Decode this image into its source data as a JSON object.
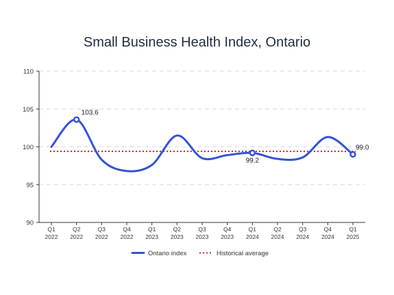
{
  "chart_data": {
    "type": "line",
    "title": "Small Business Health Index, Ontario",
    "xlabel": "",
    "ylabel": "",
    "ylim": [
      90,
      110
    ],
    "yticks": [
      90,
      95,
      100,
      105,
      110
    ],
    "categories": [
      [
        "Q1",
        "2022"
      ],
      [
        "Q2",
        "2022"
      ],
      [
        "Q3",
        "2022"
      ],
      [
        "Q4",
        "2022"
      ],
      [
        "Q1",
        "2023"
      ],
      [
        "Q2",
        "2023"
      ],
      [
        "Q3",
        "2023"
      ],
      [
        "Q4",
        "2023"
      ],
      [
        "Q1",
        "2024"
      ],
      [
        "Q2",
        "2024"
      ],
      [
        "Q3",
        "2024"
      ],
      [
        "Q4",
        "2024"
      ],
      [
        "Q1",
        "2025"
      ]
    ],
    "series": [
      {
        "name": "Ontario index",
        "color": "#3452d6",
        "values": [
          100.0,
          103.6,
          98.3,
          96.8,
          97.6,
          101.5,
          98.5,
          98.9,
          99.2,
          98.4,
          98.6,
          101.3,
          99.0
        ],
        "annotated_points": [
          {
            "index": 1,
            "label": "103.6"
          },
          {
            "index": 8,
            "label": "99.2"
          },
          {
            "index": 12,
            "label": "99.0"
          }
        ]
      }
    ],
    "reference_lines": [
      {
        "name": "Historical average",
        "value": 99.4,
        "color": "#cc1f1f",
        "style": "dotted"
      }
    ],
    "grid": {
      "horizontal": true,
      "vertical": false,
      "style": "dashed"
    },
    "legend": {
      "position": "bottom"
    }
  }
}
